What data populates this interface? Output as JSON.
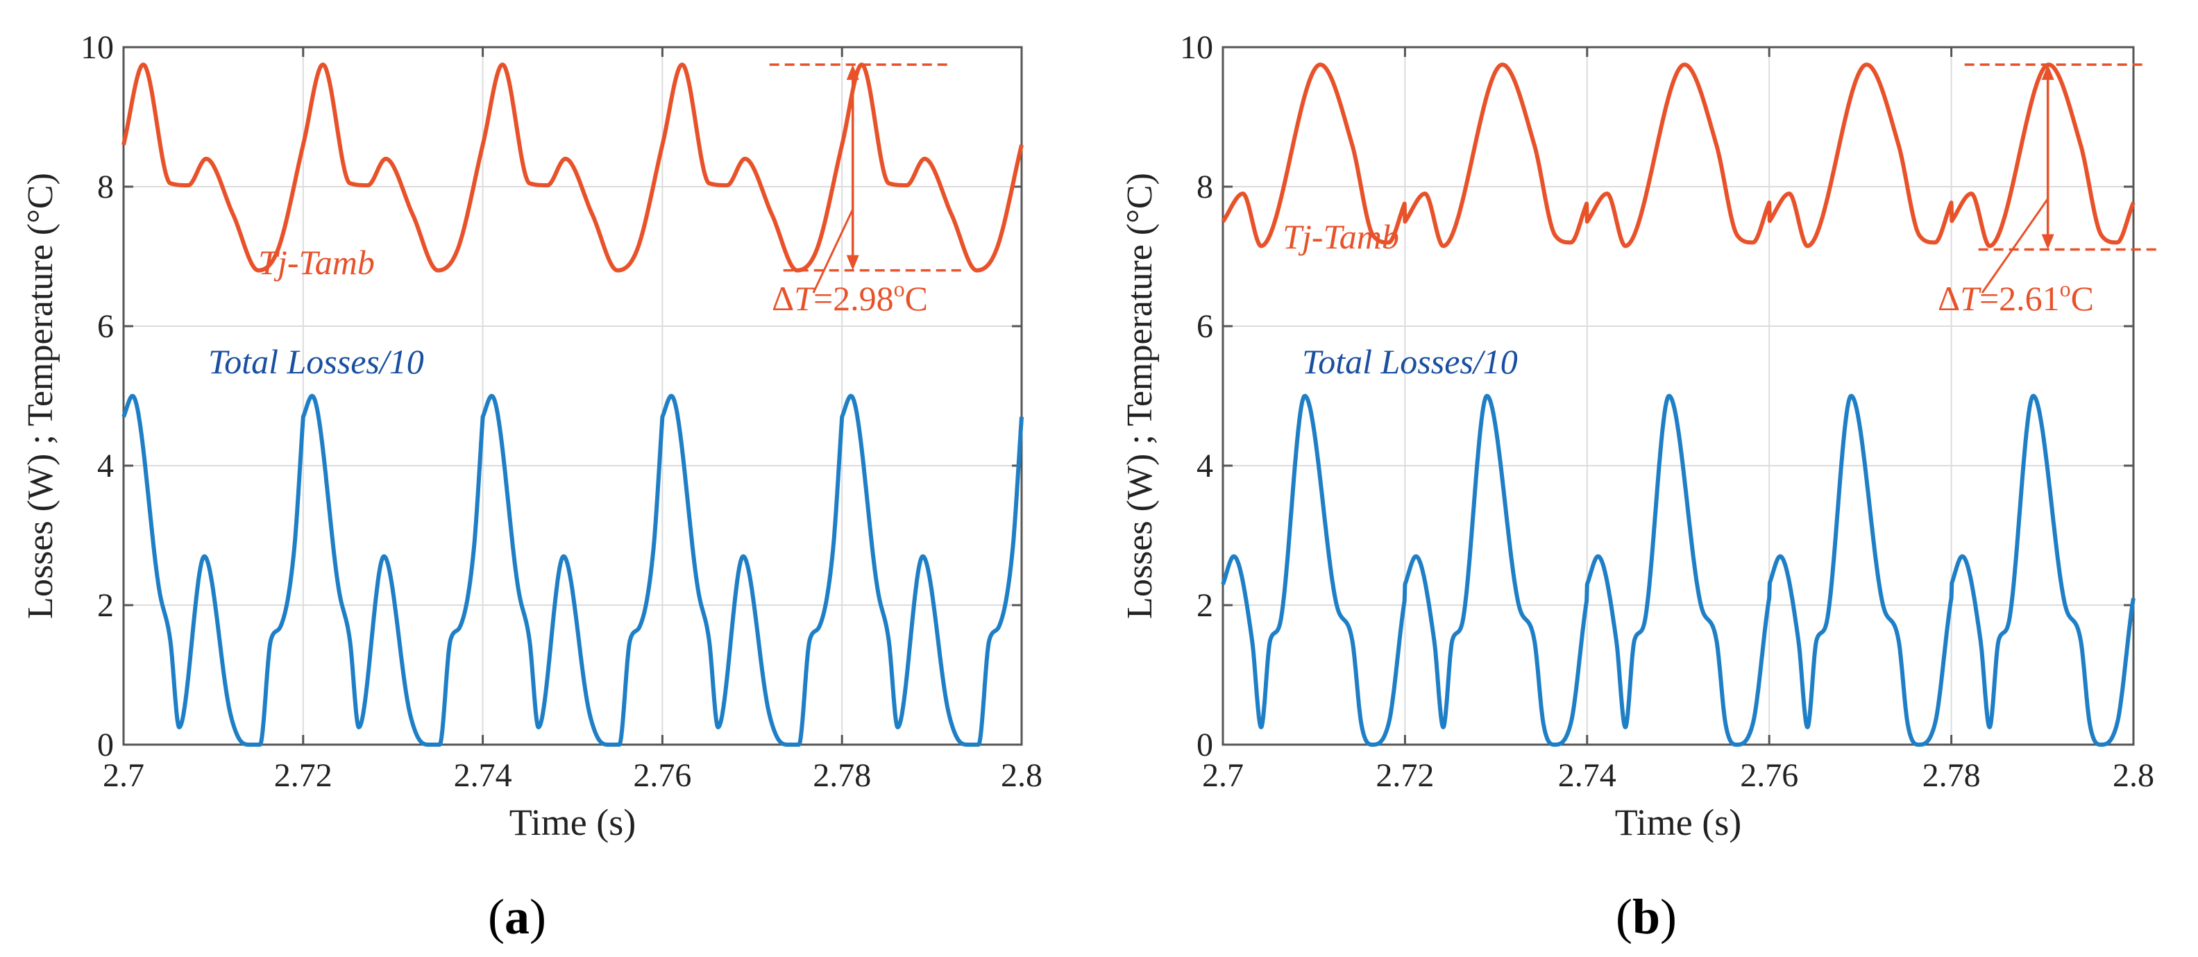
{
  "colors": {
    "temperature": "#E8522A",
    "losses": "#1F7FC6",
    "temp_label": "#E8522A",
    "loss_label": "#1A4FA0",
    "grid": "#dcdcdc",
    "axis": "#555555"
  },
  "chart_data": [
    {
      "type": "line",
      "panel": "a",
      "caption": "a",
      "xlabel": "Time (s)",
      "ylabel": "Losses (W) ; Temperature (°C)",
      "xlim": [
        2.7,
        2.8
      ],
      "ylim": [
        0,
        10
      ],
      "xticks": [
        "2.7",
        "2.72",
        "2.74",
        "2.76",
        "2.78",
        "2.8"
      ],
      "yticks": [
        "0",
        "2",
        "4",
        "6",
        "8",
        "10"
      ],
      "grid": true,
      "series": [
        {
          "name": "Tj-Tamb",
          "color_key": "temperature",
          "period": 0.02,
          "x": [
            2.7,
            2.7022,
            2.7052,
            2.7072,
            2.7092,
            2.7122,
            2.715,
            2.7172,
            2.72
          ],
          "y": [
            8.6,
            9.75,
            8.05,
            8.02,
            8.4,
            7.6,
            6.8,
            7.1,
            8.6
          ]
        },
        {
          "name": "Total Losses/10",
          "color_key": "losses",
          "period": 0.02,
          "x": [
            2.7,
            2.701,
            2.704,
            2.7052,
            2.7062,
            2.709,
            2.7118,
            2.7128,
            2.714,
            2.7152,
            2.7164,
            2.7175,
            2.719,
            2.72
          ],
          "y": [
            4.7,
            5.0,
            2.2,
            1.5,
            0.25,
            2.7,
            0.5,
            0.1,
            0.0,
            0.0,
            1.5,
            1.7,
            2.8,
            4.7
          ]
        }
      ],
      "annotations": {
        "temp_label": "Tj-Tamb",
        "loss_label": "Total Losses/10",
        "delta_symbol": "Δ",
        "delta_var": "T",
        "delta_value": "=2.98",
        "delta_deg": "o",
        "delta_unit": "C",
        "delta_top": 9.75,
        "delta_bottom": 6.8,
        "delta_time": 2.7812
      }
    },
    {
      "type": "line",
      "panel": "b",
      "caption": "b",
      "xlabel": "Time (s)",
      "ylabel": "Losses (W) ; Temperature (°C)",
      "xlim": [
        2.7,
        2.8
      ],
      "ylim": [
        0,
        10
      ],
      "xticks": [
        "2.7",
        "2.72",
        "2.74",
        "2.76",
        "2.78",
        "2.8"
      ],
      "yticks": [
        "0",
        "2",
        "4",
        "6",
        "8",
        "10"
      ],
      "grid": true,
      "series": [
        {
          "name": "Tj-Tamb",
          "color_key": "temperature",
          "period": 0.02,
          "x": [
            2.7,
            2.7022,
            2.7042,
            2.7107,
            2.7142,
            2.7165,
            2.7182,
            2.7205,
            2.722
          ],
          "y": [
            7.5,
            7.9,
            7.15,
            9.75,
            8.6,
            7.3,
            7.2,
            7.85,
            7.5
          ]
        },
        {
          "name": "Total Losses/10",
          "color_key": "losses",
          "period": 0.02,
          "x": [
            2.7,
            2.7012,
            2.7032,
            2.7042,
            2.7052,
            2.7062,
            2.709,
            2.7125,
            2.7142,
            2.7152,
            2.7164,
            2.7182,
            2.72,
            2.7212
          ],
          "y": [
            2.3,
            2.7,
            1.5,
            0.25,
            1.5,
            1.7,
            5.0,
            2.0,
            1.5,
            0.3,
            0.0,
            0.3,
            2.1,
            2.7
          ]
        }
      ],
      "annotations": {
        "temp_label": "Tj-Tamb",
        "loss_label": "Total Losses/10",
        "delta_symbol": "Δ",
        "delta_var": "T",
        "delta_value": "=2.61",
        "delta_deg": "o",
        "delta_unit": "C",
        "delta_top": 9.75,
        "delta_bottom": 7.1,
        "delta_time": 2.7906
      }
    }
  ]
}
